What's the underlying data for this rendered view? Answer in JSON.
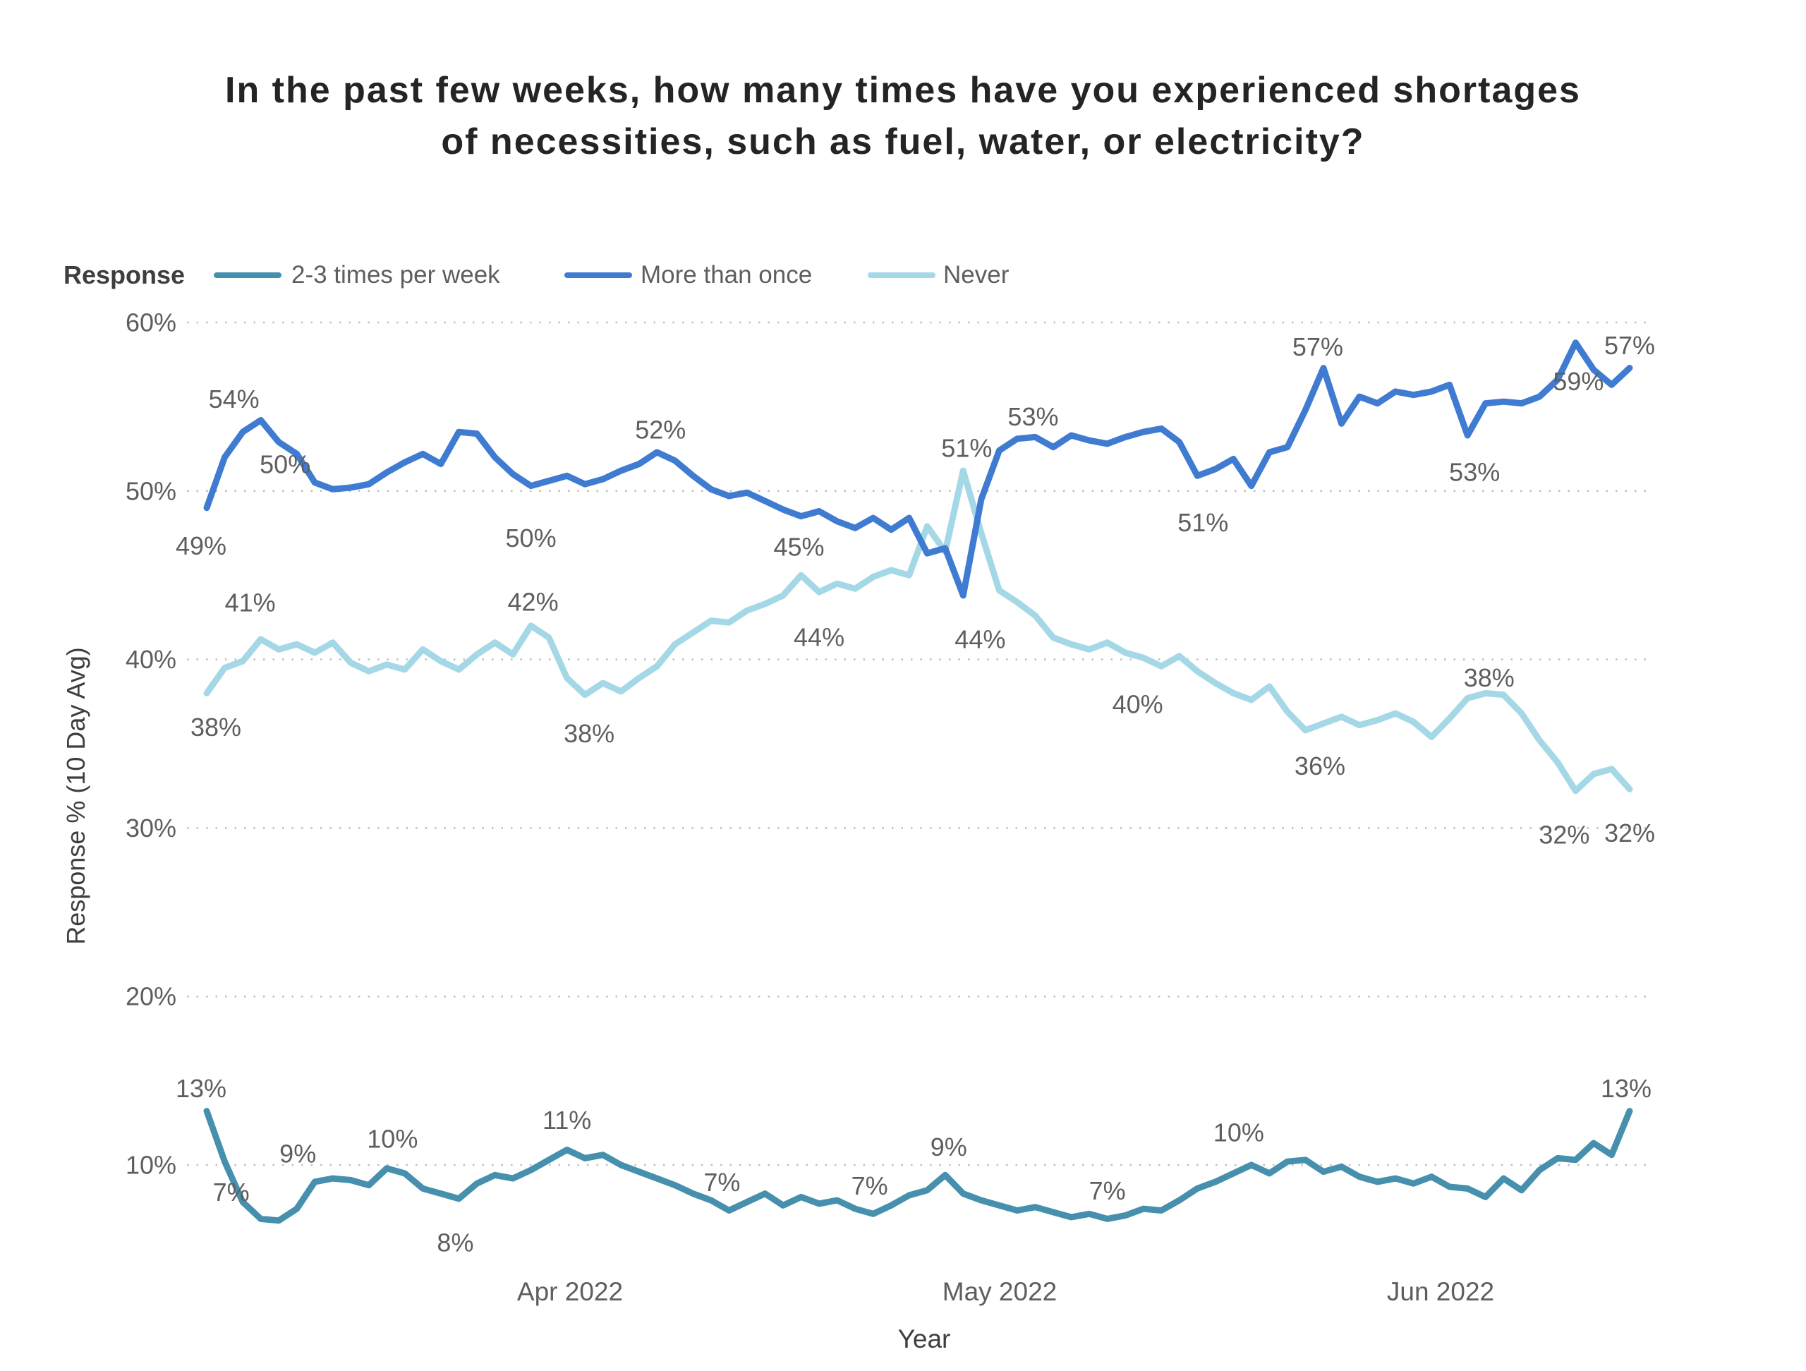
{
  "title": {
    "line1": "In the past few weeks, how many times have you experienced shortages",
    "line2": "of necessities, such as fuel, water, or electricity?"
  },
  "legend": {
    "title": "Response",
    "items": [
      {
        "label": "2-3 times per week",
        "color": "#4690AE"
      },
      {
        "label": "More than once",
        "color": "#3F7CD1"
      },
      {
        "label": "Never",
        "color": "#A5D8E6"
      }
    ]
  },
  "axes": {
    "y_title": "Response % (10 Day Avg)",
    "x_title": "Year",
    "y_tick_labels": [
      "60%",
      "50%",
      "40%",
      "30%",
      "20%",
      "10%"
    ],
    "x_tick_labels": [
      "Apr 2022",
      "May 2022",
      "Jun 2022"
    ]
  },
  "colors": {
    "label_gray": "#605E5C",
    "grid_gray": "#C1BFBD",
    "title_dark": "#252423"
  },
  "chart_data": {
    "type": "line",
    "title": "In the past few weeks, how many times have you experienced shortages of necessities, such as fuel, water, or electricity?",
    "xlabel": "Year",
    "ylabel": "Response % (10 Day Avg)",
    "ylim": [
      5,
      62
    ],
    "y_ticks": [
      60,
      50,
      40,
      30,
      20,
      10
    ],
    "x_tick_labels": [
      "Apr 2022",
      "May 2022",
      "Jun 2022"
    ],
    "grid": "dotted-horizontal",
    "legend_position": "top-left",
    "x_note": "80 evenly spaced 10-day-average samples, early March 2022 to mid June 2022",
    "series": [
      {
        "name": "Never",
        "color": "#A5D8E6",
        "values": [
          38.0,
          39.5,
          39.9,
          41.2,
          40.6,
          40.9,
          40.4,
          41.0,
          39.8,
          39.3,
          39.7,
          39.4,
          40.6,
          39.9,
          39.4,
          40.3,
          41.0,
          40.3,
          42.0,
          41.3,
          38.9,
          37.9,
          38.6,
          38.1,
          38.9,
          39.6,
          40.9,
          41.6,
          42.3,
          42.2,
          42.9,
          43.3,
          43.8,
          45.0,
          44.0,
          44.5,
          44.2,
          44.9,
          45.3,
          45.0,
          47.9,
          46.4,
          51.2,
          47.5,
          44.1,
          43.4,
          42.6,
          41.3,
          40.9,
          40.6,
          41.0,
          40.4,
          40.1,
          39.6,
          40.2,
          39.3,
          38.6,
          38.0,
          37.6,
          38.4,
          36.9,
          35.8,
          36.2,
          36.6,
          36.1,
          36.4,
          36.8,
          36.3,
          35.4,
          36.5,
          37.7,
          38.0,
          37.9,
          36.8,
          35.2,
          33.9,
          32.2,
          33.2,
          33.5,
          32.3
        ],
        "point_labels": [
          {
            "i": 0,
            "t": "38%",
            "ox": 13,
            "oy": 48
          },
          {
            "i": 3,
            "t": "41%",
            "ox": -15,
            "oy": -52
          },
          {
            "i": 18,
            "t": "42%",
            "ox": 3,
            "oy": -34
          },
          {
            "i": 21,
            "t": "38%",
            "ox": 6,
            "oy": 55
          },
          {
            "i": 33,
            "t": "45%",
            "ox": -3,
            "oy": -40
          },
          {
            "i": 34,
            "t": "44%",
            "ox": 0,
            "oy": 64
          },
          {
            "i": 42,
            "t": "51%",
            "ox": 5,
            "oy": -32
          },
          {
            "i": 52,
            "t": "40%",
            "ox": -8,
            "oy": 66
          },
          {
            "i": 62,
            "t": "36%",
            "ox": -5,
            "oy": 60
          },
          {
            "i": 71,
            "t": "38%",
            "ox": 5,
            "oy": -22
          },
          {
            "i": 76,
            "t": "32%",
            "ox": -16,
            "oy": 62
          },
          {
            "i": 79,
            "t": "32%",
            "ox": 0,
            "oy": 62
          }
        ]
      },
      {
        "name": "More than once",
        "color": "#3F7CD1",
        "values": [
          49.0,
          52.0,
          53.5,
          54.2,
          52.9,
          52.2,
          50.5,
          50.1,
          50.2,
          50.4,
          51.1,
          51.7,
          52.2,
          51.6,
          53.5,
          53.4,
          52.0,
          51.0,
          50.3,
          50.6,
          50.9,
          50.4,
          50.7,
          51.2,
          51.6,
          52.3,
          51.8,
          50.9,
          50.1,
          49.7,
          49.9,
          49.4,
          48.9,
          48.5,
          48.8,
          48.2,
          47.8,
          48.4,
          47.7,
          48.4,
          46.3,
          46.6,
          43.8,
          49.5,
          52.4,
          53.1,
          53.2,
          52.6,
          53.3,
          53.0,
          52.8,
          53.2,
          53.5,
          53.7,
          52.9,
          50.9,
          51.3,
          51.9,
          50.3,
          52.3,
          52.6,
          54.8,
          57.3,
          54.0,
          55.6,
          55.2,
          55.9,
          55.7,
          55.9,
          56.3,
          53.3,
          55.2,
          55.3,
          55.2,
          55.6,
          56.6,
          58.8,
          57.2,
          56.3,
          57.3
        ],
        "point_labels": [
          {
            "i": 0,
            "t": "49%",
            "ox": -8,
            "oy": 54
          },
          {
            "i": 3,
            "t": "54%",
            "ox": -38,
            "oy": -30
          },
          {
            "i": 6,
            "t": "50%",
            "ox": -42,
            "oy": -26
          },
          {
            "i": 18,
            "t": "50%",
            "ox": 0,
            "oy": 74
          },
          {
            "i": 25,
            "t": "52%",
            "ox": 5,
            "oy": -32
          },
          {
            "i": 42,
            "t": "44%",
            "ox": 24,
            "oy": 62
          },
          {
            "i": 46,
            "t": "53%",
            "ox": -3,
            "oy": -29
          },
          {
            "i": 55,
            "t": "51%",
            "ox": 8,
            "oy": 66
          },
          {
            "i": 62,
            "t": "57%",
            "ox": -8,
            "oy": -30
          },
          {
            "i": 70,
            "t": "53%",
            "ox": 10,
            "oy": 52
          },
          {
            "i": 76,
            "t": "59%",
            "ox": 4,
            "oy": 55
          },
          {
            "i": 79,
            "t": "57%",
            "ox": 0,
            "oy": -32
          }
        ]
      },
      {
        "name": "2-3 times per week",
        "color": "#4690AE",
        "values": [
          13.2,
          10.2,
          7.8,
          6.8,
          6.7,
          7.4,
          9.0,
          9.2,
          9.1,
          8.8,
          9.8,
          9.5,
          8.6,
          8.3,
          8.0,
          8.9,
          9.4,
          9.2,
          9.7,
          10.3,
          10.9,
          10.4,
          10.6,
          10.0,
          9.6,
          9.2,
          8.8,
          8.3,
          7.9,
          7.3,
          7.8,
          8.3,
          7.6,
          8.1,
          7.7,
          7.9,
          7.4,
          7.1,
          7.6,
          8.2,
          8.5,
          9.4,
          8.3,
          7.9,
          7.6,
          7.3,
          7.5,
          7.2,
          6.9,
          7.1,
          6.8,
          7.0,
          7.4,
          7.3,
          7.9,
          8.6,
          9.0,
          9.5,
          10.0,
          9.5,
          10.2,
          10.3,
          9.6,
          9.9,
          9.3,
          9.0,
          9.2,
          8.9,
          9.3,
          8.7,
          8.6,
          8.1,
          9.2,
          8.5,
          9.7,
          10.4,
          10.3,
          11.3,
          10.6,
          13.2
        ],
        "point_labels": [
          {
            "i": 0,
            "t": "13%",
            "ox": -8,
            "oy": -32
          },
          {
            "i": 3,
            "t": "7%",
            "ox": -42,
            "oy": -38
          },
          {
            "i": 6,
            "t": "9%",
            "ox": -24,
            "oy": -40
          },
          {
            "i": 10,
            "t": "10%",
            "ox": 8,
            "oy": -42
          },
          {
            "i": 14,
            "t": "8%",
            "ox": -5,
            "oy": 62
          },
          {
            "i": 20,
            "t": "11%",
            "ox": 0,
            "oy": -42
          },
          {
            "i": 29,
            "t": "7%",
            "ox": -10,
            "oy": -40
          },
          {
            "i": 37,
            "t": "7%",
            "ox": -5,
            "oy": -40
          },
          {
            "i": 41,
            "t": "9%",
            "ox": 5,
            "oy": -40
          },
          {
            "i": 50,
            "t": "7%",
            "ox": 0,
            "oy": -40
          },
          {
            "i": 58,
            "t": "10%",
            "ox": -18,
            "oy": -46
          },
          {
            "i": 79,
            "t": "13%",
            "ox": -5,
            "oy": -32
          }
        ]
      }
    ]
  }
}
